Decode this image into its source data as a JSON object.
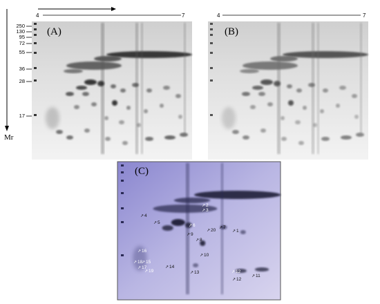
{
  "axes": {
    "ph_start": "4",
    "ph_end": "7",
    "ph_start_b": "4",
    "ph_end_b": "7",
    "mr_label": "Mr",
    "mw_markers": [
      "250",
      "130",
      "95",
      "72",
      "55",
      "36",
      "28",
      "17"
    ]
  },
  "panels": {
    "a_label": "(A)",
    "b_label": "(B)",
    "c_label": "(C)"
  },
  "spots": [
    {
      "id": "4",
      "label": "4"
    },
    {
      "id": "5",
      "label": "5"
    },
    {
      "id": "2",
      "label": "2"
    },
    {
      "id": "3",
      "label": "3"
    },
    {
      "id": "6",
      "label": "6"
    },
    {
      "id": "20",
      "label": "20"
    },
    {
      "id": "7",
      "label": "7"
    },
    {
      "id": "1",
      "label": "1"
    },
    {
      "id": "9",
      "label": "9"
    },
    {
      "id": "8",
      "label": "8"
    },
    {
      "id": "10",
      "label": "10"
    },
    {
      "id": "16",
      "label": "16"
    },
    {
      "id": "18",
      "label": "18"
    },
    {
      "id": "15",
      "label": "15"
    },
    {
      "id": "17",
      "label": "17"
    },
    {
      "id": "14",
      "label": "14"
    },
    {
      "id": "19",
      "label": "19"
    },
    {
      "id": "13",
      "label": "13"
    },
    {
      "id": "12a",
      "label": "12"
    },
    {
      "id": "12b",
      "label": "12"
    },
    {
      "id": "11",
      "label": "11"
    }
  ],
  "colors": {
    "gel_background": "#ededed",
    "stain_dark": "#1a1a1a",
    "panel_c_tint": "#6b6bc8"
  }
}
